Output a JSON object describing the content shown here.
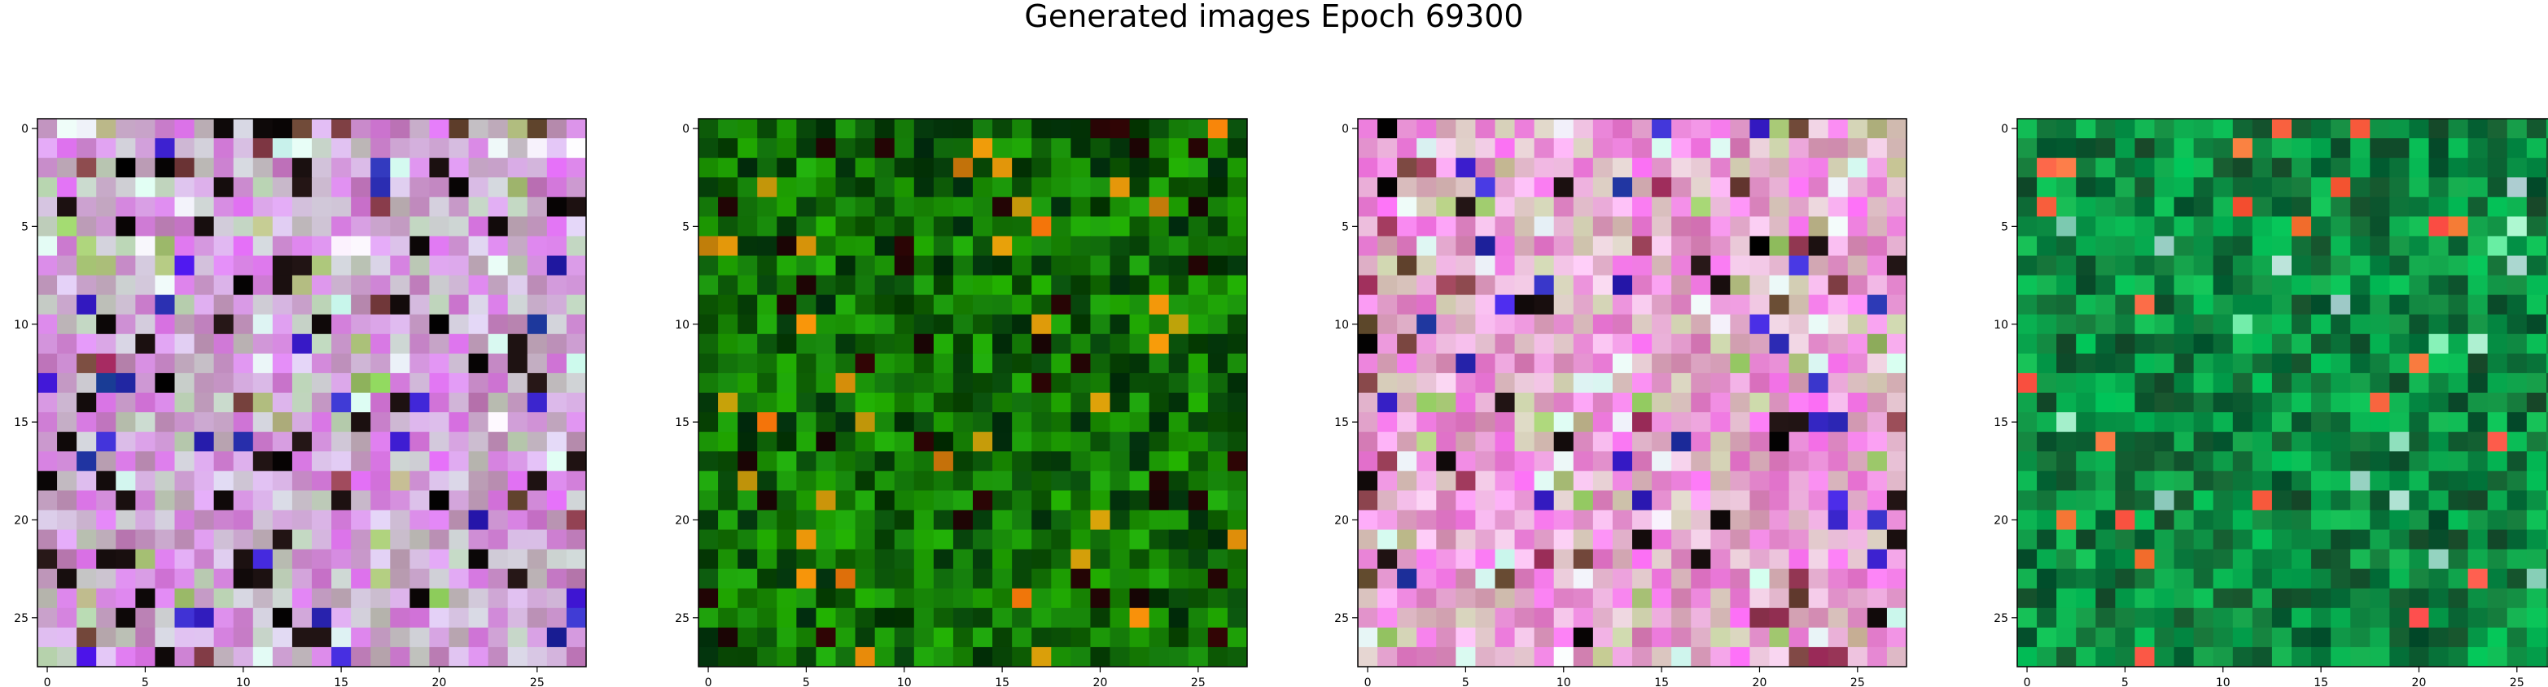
{
  "figure": {
    "title": "Generated images Epoch 69300"
  },
  "chart_data": [
    {
      "type": "heatmap",
      "palette": "magenta-noise",
      "seed": 11,
      "rows": 28,
      "cols": 28,
      "xlim": [
        -0.5,
        27.5
      ],
      "ylim": [
        27.5,
        -0.5
      ],
      "xticks": [
        0,
        5,
        10,
        15,
        20,
        25
      ],
      "yticks": [
        0,
        5,
        10,
        15,
        20,
        25
      ],
      "xticklabels": [
        "0",
        "5",
        "10",
        "15",
        "20",
        "25"
      ],
      "yticklabels": [
        "0",
        "5",
        "10",
        "15",
        "20",
        "25"
      ]
    },
    {
      "type": "heatmap",
      "palette": "dark-green-noise",
      "seed": 23,
      "rows": 28,
      "cols": 28,
      "xlim": [
        -0.5,
        27.5
      ],
      "ylim": [
        27.5,
        -0.5
      ],
      "xticks": [
        0,
        5,
        10,
        15,
        20,
        25
      ],
      "yticks": [
        0,
        5,
        10,
        15,
        20,
        25
      ],
      "xticklabels": [
        "0",
        "5",
        "10",
        "15",
        "20",
        "25"
      ],
      "yticklabels": [
        "0",
        "5",
        "10",
        "15",
        "20",
        "25"
      ]
    },
    {
      "type": "heatmap",
      "palette": "pink-noise",
      "seed": 37,
      "rows": 28,
      "cols": 28,
      "xlim": [
        -0.5,
        27.5
      ],
      "ylim": [
        27.5,
        -0.5
      ],
      "xticks": [
        0,
        5,
        10,
        15,
        20,
        25
      ],
      "yticks": [
        0,
        5,
        10,
        15,
        20,
        25
      ],
      "xticklabels": [
        "0",
        "5",
        "10",
        "15",
        "20",
        "25"
      ],
      "yticklabels": [
        "0",
        "5",
        "10",
        "15",
        "20",
        "25"
      ]
    },
    {
      "type": "heatmap",
      "palette": "teal-green-noise",
      "seed": 51,
      "rows": 28,
      "cols": 28,
      "xlim": [
        -0.5,
        27.5
      ],
      "ylim": [
        27.5,
        -0.5
      ],
      "xticks": [
        0,
        5,
        10,
        15,
        20,
        25
      ],
      "yticks": [
        0,
        5,
        10,
        15,
        20,
        25
      ],
      "xticklabels": [
        "0",
        "5",
        "10",
        "15",
        "20",
        "25"
      ],
      "yticklabels": [
        "0",
        "5",
        "10",
        "15",
        "20",
        "25"
      ]
    }
  ]
}
